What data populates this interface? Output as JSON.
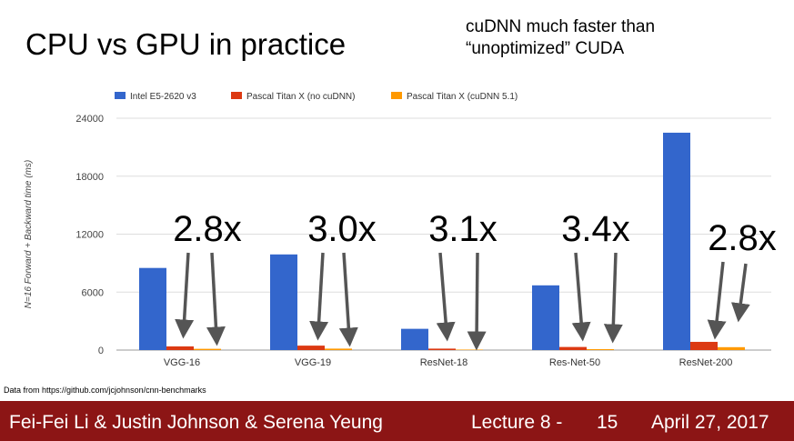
{
  "slide": {
    "title": "CPU vs GPU in practice",
    "note_line1": "cuDNN much faster than",
    "note_line2": "“unoptimized” CUDA",
    "source": "Data from https://github.com/jcjohnson/cnn-benchmarks"
  },
  "footer": {
    "authors": "Fei-Fei Li & Justin Johnson & Serena Yeung",
    "lecture": "Lecture 8 -",
    "page": "15",
    "date": "April 27, 2017"
  },
  "chart_data": {
    "type": "bar",
    "title": "",
    "xlabel": "",
    "ylabel": "N=16 Forward + Backward time (ms)",
    "categories": [
      "VGG-16",
      "VGG-19",
      "ResNet-18",
      "Res-Net-50",
      "ResNet-200"
    ],
    "series": [
      {
        "name": "Intel E5-2620 v3",
        "color": "#3366cc",
        "values": [
          8500,
          9900,
          2200,
          6700,
          22500
        ]
      },
      {
        "name": "Pascal Titan X (no cuDNN)",
        "color": "#dc3912",
        "values": [
          380,
          460,
          150,
          320,
          850
        ]
      },
      {
        "name": "Pascal Titan X (cuDNN 5.1)",
        "color": "#ff9900",
        "values": [
          130,
          150,
          50,
          95,
          300
        ]
      }
    ],
    "yticks": [
      "0",
      "6000",
      "12000",
      "18000",
      "24000"
    ],
    "ylim": [
      0,
      24000
    ],
    "grid": true,
    "legend": "top-left",
    "annotations": [
      "2.8x",
      "3.0x",
      "3.1x",
      "3.4x",
      "2.8x"
    ]
  }
}
